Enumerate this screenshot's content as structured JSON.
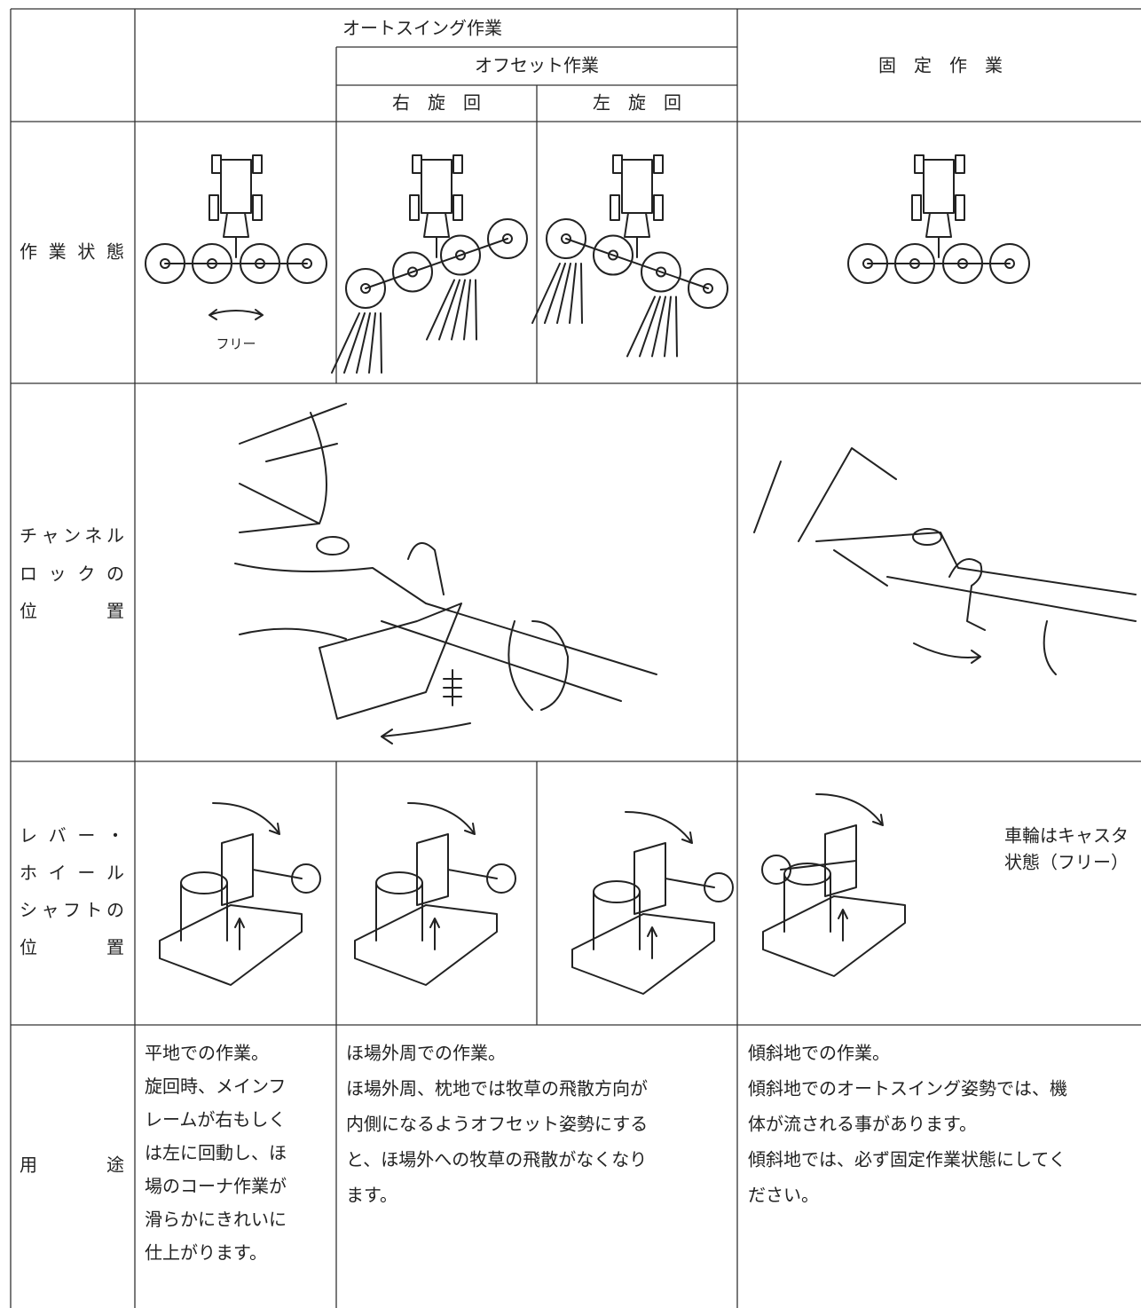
{
  "table": {
    "header": {
      "auto_swing": "オートスイング作業",
      "offset": "オフセット作業",
      "right_turn": "右　旋　回",
      "left_turn": "左　旋　回",
      "fixed": "固　定　作　業"
    },
    "row_labels": [
      [
        "作業状態"
      ],
      [
        "チャンネル",
        "ロックの",
        "位　置"
      ],
      [
        "レバー・",
        "ホイール",
        "シャフトの",
        "位　置"
      ],
      [
        "用　途"
      ]
    ],
    "work_state_note": "フリー",
    "fixed_wheel_note": [
      "車輪はキャスタ",
      "状態（フリー）"
    ],
    "uses": [
      [
        "平地での作業。",
        "旋回時、メインフ",
        "レームが右もしく",
        "は左に回動し、ほ",
        "場のコーナ作業が",
        "滑らかにきれいに",
        "仕上がります。"
      ],
      [
        "ほ場外周での作業。",
        "ほ場外周、枕地では牧草の飛散方向が",
        "内側になるようオフセット姿勢にする",
        "と、ほ場外への牧草の飛散がなくなり",
        "ます。"
      ],
      [
        "傾斜地での作業。",
        "傾斜地でのオートスイング姿勢では、機",
        "体が流される事があります。",
        "傾斜地では、必ず固定作業状態にしてく",
        "ださい。"
      ]
    ]
  }
}
